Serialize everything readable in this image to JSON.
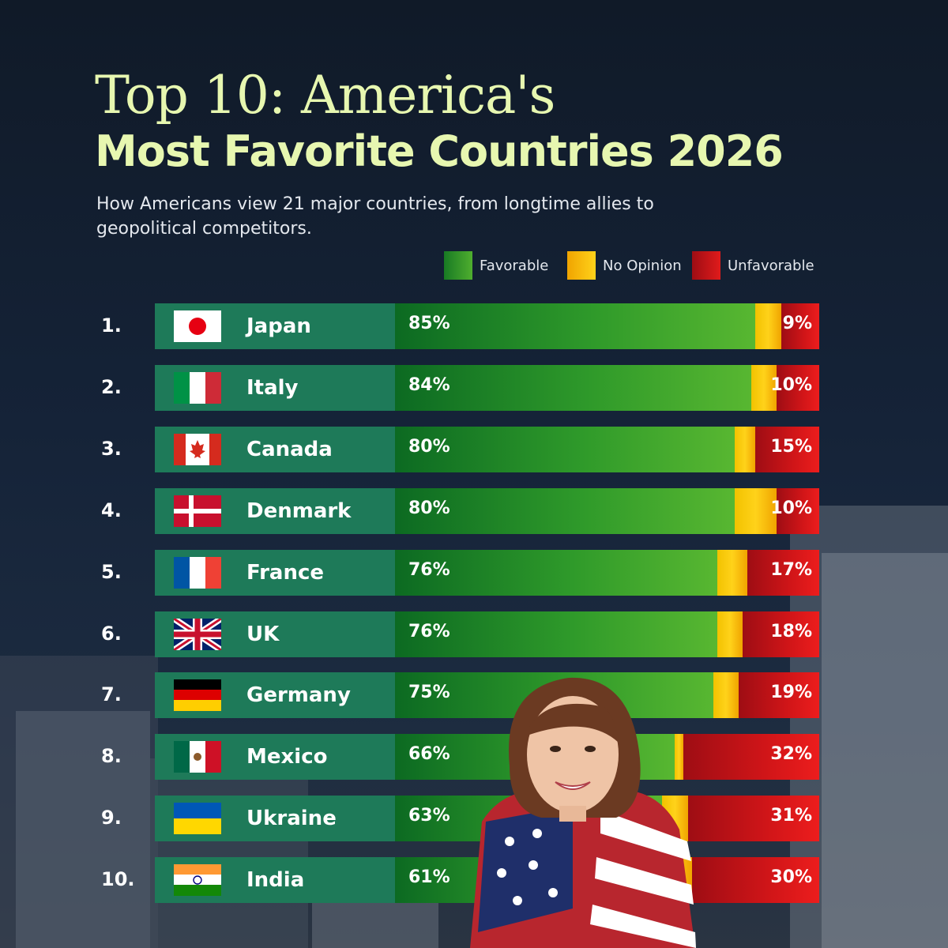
{
  "header": {
    "title_line1": "Top 10: America's",
    "title_line2": "Most Favorite Countries 2026",
    "subtitle": "How Americans view 21 major countries, from longtime allies to geopolitical competitors."
  },
  "legend": [
    {
      "label": "Favorable",
      "color": "#3c9e2b"
    },
    {
      "label": "No Opinion",
      "color": "#f7c40c"
    },
    {
      "label": "Unfavorable",
      "color": "#c4121a"
    }
  ],
  "chart_data": {
    "type": "bar",
    "stacked": true,
    "orientation": "horizontal",
    "categories": [
      "Japan",
      "Italy",
      "Canada",
      "Denmark",
      "France",
      "UK",
      "Germany",
      "Mexico",
      "Ukraine",
      "India"
    ],
    "ranks": [
      "1.",
      "2.",
      "3.",
      "4.",
      "5.",
      "6.",
      "7.",
      "8.",
      "9.",
      "10."
    ],
    "series": [
      {
        "name": "Favorable",
        "values": [
          85,
          84,
          80,
          80,
          76,
          76,
          75,
          66,
          63,
          61
        ]
      },
      {
        "name": "No Opinion",
        "values": [
          6,
          6,
          5,
          10,
          7,
          6,
          6,
          2,
          6,
          9
        ]
      },
      {
        "name": "Unfavorable",
        "values": [
          9,
          10,
          15,
          10,
          17,
          18,
          19,
          32,
          31,
          30
        ]
      }
    ],
    "value_labels": {
      "favorable": [
        "85%",
        "84%",
        "80%",
        "80%",
        "76%",
        "76%",
        "75%",
        "66%",
        "63%",
        "61%"
      ],
      "unfavorable": [
        "9%",
        "10%",
        "15%",
        "10%",
        "17%",
        "18%",
        "19%",
        "32%",
        "31%",
        "30%"
      ]
    },
    "flags": [
      "japan-flag",
      "italy-flag",
      "canada-flag",
      "denmark-flag",
      "france-flag",
      "uk-flag",
      "germany-flag",
      "mexico-flag",
      "ukraine-flag",
      "india-flag"
    ],
    "legend_position": "top-right"
  }
}
